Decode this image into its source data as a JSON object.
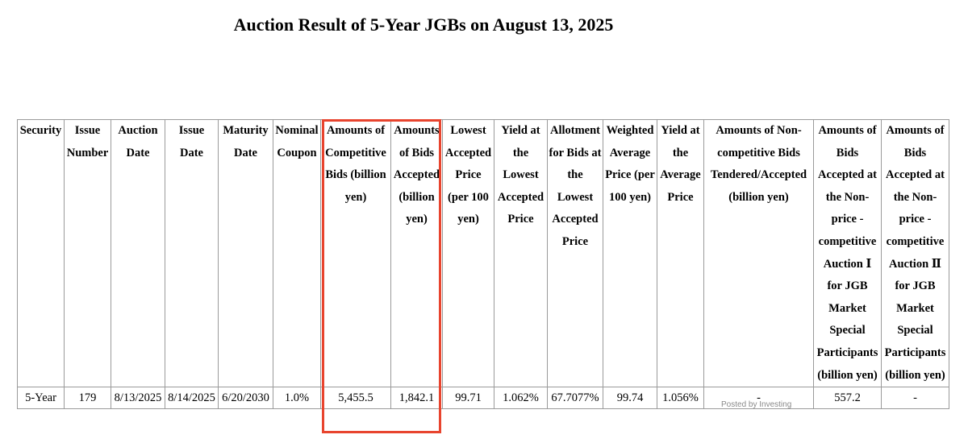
{
  "title": "Auction Result of 5-Year JGBs on August 13, 2025",
  "table": {
    "headers": [
      "Security",
      "Issue Number",
      "Auction Date",
      "Issue Date",
      "Maturity Date",
      "Nominal Coupon",
      "Amounts of Competitive Bids (billion yen)",
      "Amounts of Bids Accepted (billion yen)",
      "Lowest Accepted Price (per 100 yen)",
      "Yield at the Lowest Accepted Price",
      "Allotment for Bids at the Lowest Accepted Price",
      "Weighted Average Price (per 100 yen)",
      "Yield at the Average Price",
      "Amounts of Non-competitive Bids Tendered/Accepted (billion yen)",
      "Amounts of Bids Accepted at the Non-price -competitive Auction Ⅰ for JGB Market Special Participants (billion yen)",
      "Amounts of Bids Accepted at the Non-price -competitive Auction Ⅱ for JGB Market Special Participants (billion yen)"
    ],
    "rows": [
      [
        "5-Year",
        "179",
        "8/13/2025",
        "8/14/2025",
        "6/20/2030",
        "1.0%",
        "5,455.5",
        "1,842.1",
        "99.71",
        "1.062%",
        "67.7077%",
        "99.74",
        "1.056%",
        "-",
        "557.2",
        "-"
      ]
    ]
  },
  "watermark": "Posted by Investing",
  "highlight_color": "#e8442e"
}
